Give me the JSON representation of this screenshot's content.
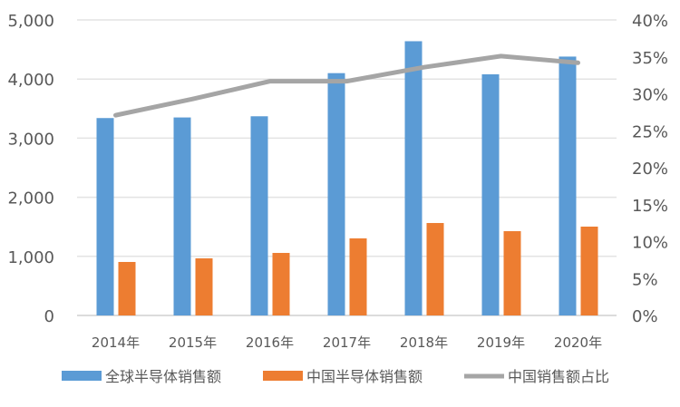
{
  "chart_data": {
    "type": "bar+line",
    "categories": [
      "2014年",
      "2015年",
      "2016年",
      "2017年",
      "2018年",
      "2019年",
      "2020年"
    ],
    "series": [
      {
        "name": "全球半导体销售额",
        "type": "bar",
        "axis": "left",
        "color": "#5B9BD5",
        "values": [
          3340,
          3350,
          3370,
          4100,
          4640,
          4080,
          4380
        ]
      },
      {
        "name": "中国半导体销售额",
        "type": "bar",
        "axis": "left",
        "color": "#ED7D31",
        "values": [
          905,
          966,
          1058,
          1304,
          1564,
          1426,
          1503
        ]
      },
      {
        "name": "中国销售额占比",
        "type": "line",
        "axis": "right",
        "color": "#A5A5A5",
        "values": [
          27.1,
          29.3,
          31.7,
          31.7,
          33.6,
          35.1,
          34.2
        ]
      }
    ],
    "ylim": [
      0,
      5000
    ],
    "yticks": [
      "0",
      "1,000",
      "2,000",
      "3,000",
      "4,000",
      "5,000"
    ],
    "y2lim": [
      0,
      40
    ],
    "y2ticks": [
      "0%",
      "5%",
      "10%",
      "15%",
      "20%",
      "25%",
      "30%",
      "35%",
      "40%"
    ],
    "grid": true,
    "legend": "bottom"
  }
}
